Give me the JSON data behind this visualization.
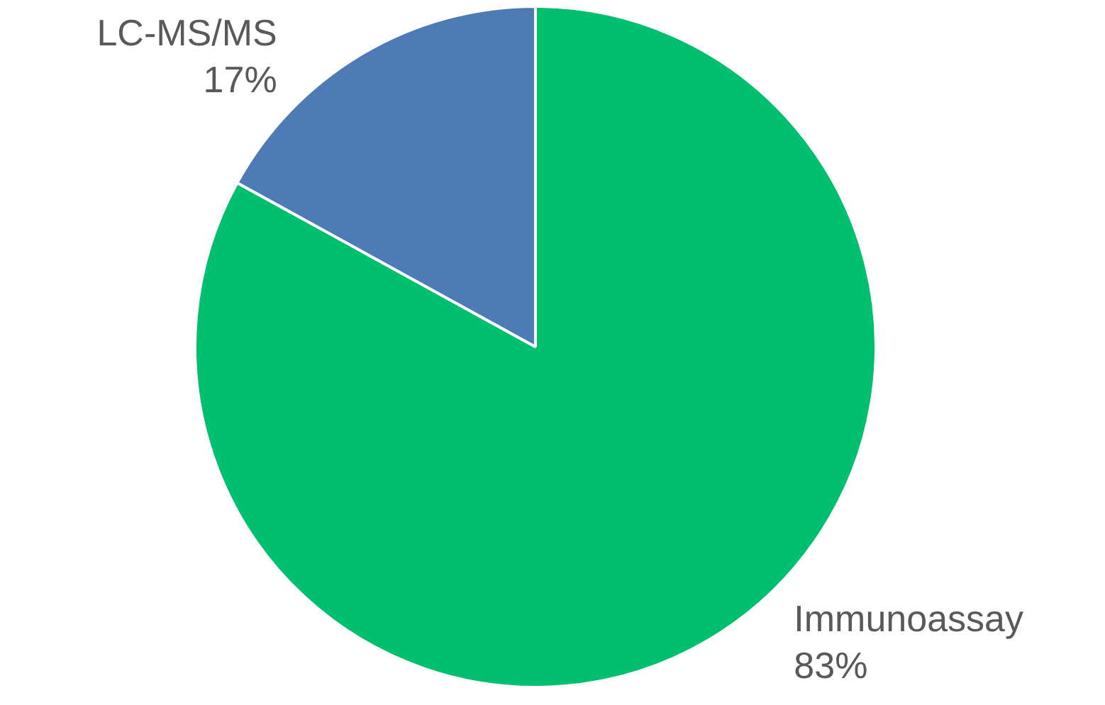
{
  "chart_data": {
    "type": "pie",
    "categories": [
      "Immunoassay",
      "LC-MS/MS"
    ],
    "values": [
      83,
      17
    ],
    "colors": [
      "#00bf6f",
      "#4e7ab5"
    ],
    "data_labels": true,
    "value_labels": [
      "83%",
      "17%"
    ]
  }
}
